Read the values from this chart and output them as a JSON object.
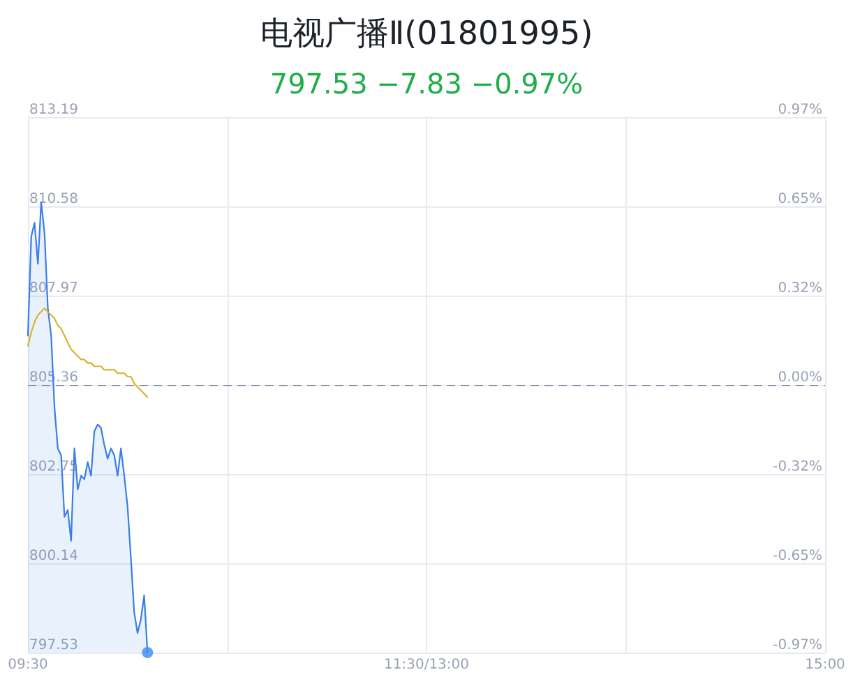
{
  "chart_data": {
    "type": "area",
    "title": "电视广播Ⅱ(01801995)",
    "subtitle": "797.53 −7.83 −0.97%",
    "categories": [
      "09:30",
      null,
      null,
      null,
      null,
      null,
      null,
      null,
      null,
      null,
      null,
      null,
      null,
      null,
      null,
      null,
      null,
      null,
      null,
      null,
      null,
      null,
      null,
      null,
      null,
      null,
      null,
      null,
      null,
      null,
      null,
      null,
      null,
      null,
      null,
      null,
      null,
      null,
      null,
      null,
      null,
      null,
      null,
      null,
      null,
      null,
      null,
      null,
      null,
      null,
      null,
      null,
      null,
      null,
      null,
      null,
      null,
      null,
      null,
      null,
      null,
      null,
      null,
      null,
      null,
      null,
      null,
      null,
      null,
      null,
      null,
      null,
      null,
      null,
      null,
      null,
      null,
      null,
      null,
      null,
      null,
      null,
      null,
      null,
      null,
      null,
      null,
      null,
      null,
      null,
      null,
      null,
      null,
      null,
      null,
      null,
      null,
      null,
      null,
      null,
      null,
      null,
      null,
      null,
      null,
      null,
      null,
      null,
      null,
      null,
      null,
      null,
      null,
      null,
      null,
      null,
      null,
      null,
      null,
      null,
      "11:30/13:00",
      null,
      null,
      null,
      null,
      null,
      null,
      null,
      null,
      null,
      null,
      null,
      null,
      null,
      null,
      null,
      null,
      null,
      null,
      null,
      null,
      null,
      null,
      null,
      null,
      null,
      null,
      null,
      null,
      null,
      null,
      null,
      null,
      null,
      null,
      null,
      null,
      null,
      null,
      null,
      null,
      null,
      null,
      null,
      null,
      null,
      null,
      null,
      null,
      null,
      null,
      null,
      null,
      null,
      null,
      null,
      null,
      null,
      null,
      null,
      null,
      null,
      null,
      null,
      null,
      null,
      null,
      null,
      null,
      null,
      null,
      null,
      null,
      null,
      null,
      null,
      null,
      null,
      null,
      null,
      null,
      null,
      null,
      null,
      null,
      null,
      null,
      null,
      null,
      null,
      null,
      null,
      null,
      null,
      null,
      null,
      null,
      null,
      null,
      null,
      null,
      null,
      null,
      null,
      null,
      null,
      null,
      null,
      null,
      null,
      null,
      null,
      null,
      null,
      null,
      null,
      null,
      null,
      null,
      null,
      "15:00"
    ],
    "ylim": [
      797.53,
      813.19
    ],
    "yticks": [
      797.53,
      800.14,
      802.75,
      805.36,
      807.97,
      810.58,
      813.19
    ],
    "y2lim": [
      -0.97,
      0.97
    ],
    "y2ticks": [
      {
        "value": -0.97,
        "label": "-0.97%"
      },
      {
        "value": -0.6467,
        "label": "-0.65%"
      },
      {
        "value": -0.3233,
        "label": "-0.32%"
      },
      {
        "value": 0,
        "label": "0.00%"
      },
      {
        "value": 0.3233,
        "label": "0.32%"
      },
      {
        "value": 0.6467,
        "label": "0.65%"
      },
      {
        "value": 0.97,
        "label": "0.97%"
      }
    ],
    "grid": true,
    "marker": "none",
    "ref_lines": [
      {
        "axis": "y",
        "value": 805.36,
        "color": "#8c93ab",
        "line_style": "dashed"
      }
    ],
    "series": [
      {
        "color": "#3a7ee9",
        "line_style": "solid",
        "values": [
          806.8,
          809.7,
          810.1,
          808.9,
          810.7,
          809.8,
          807.6,
          806.8,
          804.7,
          803.5,
          803.3,
          801.5,
          801.7,
          800.8,
          803.5,
          802.3,
          802.7,
          802.6,
          803.1,
          802.7,
          804.0,
          804.2,
          804.1,
          803.6,
          803.2,
          803.5,
          803.3,
          802.7,
          803.5,
          802.7,
          801.8,
          800.3,
          798.7,
          798.1,
          798.5,
          799.2,
          797.53,
          null,
          null,
          null,
          null,
          null,
          null,
          null,
          null,
          null,
          null,
          null,
          null,
          null,
          null,
          null,
          null,
          null,
          null,
          null,
          null,
          null,
          null,
          null,
          null,
          null,
          null,
          null,
          null,
          null,
          null,
          null,
          null,
          null,
          null,
          null,
          null,
          null,
          null,
          null,
          null,
          null,
          null,
          null,
          null,
          null,
          null,
          null,
          null,
          null,
          null,
          null,
          null,
          null,
          null,
          null,
          null,
          null,
          null,
          null,
          null,
          null,
          null,
          null,
          null,
          null,
          null,
          null,
          null,
          null,
          null,
          null,
          null,
          null,
          null,
          null,
          null,
          null,
          null,
          null,
          null,
          null,
          null,
          null,
          null,
          null,
          null,
          null,
          null,
          null,
          null,
          null,
          null,
          null,
          null,
          null,
          null,
          null,
          null,
          null,
          null,
          null,
          null,
          null,
          null,
          null,
          null,
          null,
          null,
          null,
          null,
          null,
          null,
          null,
          null,
          null,
          null,
          null,
          null,
          null,
          null,
          null,
          null,
          null,
          null,
          null,
          null,
          null,
          null,
          null,
          null,
          null,
          null,
          null,
          null,
          null,
          null,
          null,
          null,
          null,
          null,
          null,
          null,
          null,
          null,
          null,
          null,
          null,
          null,
          null,
          null,
          null,
          null,
          null,
          null,
          null,
          null,
          null,
          null,
          null,
          null,
          null,
          null,
          null,
          null,
          null,
          null,
          null,
          null,
          null,
          null,
          null,
          null,
          null,
          null,
          null,
          null,
          null,
          null,
          null,
          null,
          null,
          null,
          null,
          null,
          null,
          null,
          null,
          null,
          null,
          null,
          null,
          null,
          null,
          null,
          null,
          null,
          null,
          null,
          null,
          null,
          null,
          null,
          null,
          null
        ]
      },
      {
        "type": "line",
        "color": "#d4b530",
        "line_style": "solid",
        "values": [
          806.5,
          806.9,
          807.2,
          807.4,
          807.5,
          807.6,
          807.5,
          807.4,
          807.3,
          807.1,
          807.0,
          806.8,
          806.6,
          806.4,
          806.3,
          806.2,
          806.1,
          806.1,
          806.0,
          806.0,
          805.9,
          805.9,
          805.9,
          805.8,
          805.8,
          805.8,
          805.8,
          805.7,
          805.7,
          805.7,
          805.6,
          805.6,
          805.4,
          805.3,
          805.2,
          805.1,
          805.0,
          null,
          null,
          null,
          null,
          null,
          null,
          null,
          null,
          null,
          null,
          null,
          null,
          null,
          null,
          null,
          null,
          null,
          null,
          null,
          null,
          null,
          null,
          null,
          null,
          null,
          null,
          null,
          null,
          null,
          null,
          null,
          null,
          null,
          null,
          null,
          null,
          null,
          null,
          null,
          null,
          null,
          null,
          null,
          null,
          null,
          null,
          null,
          null,
          null,
          null,
          null,
          null,
          null,
          null,
          null,
          null,
          null,
          null,
          null,
          null,
          null,
          null,
          null,
          null,
          null,
          null,
          null,
          null,
          null,
          null,
          null,
          null,
          null,
          null,
          null,
          null,
          null,
          null,
          null,
          null,
          null,
          null,
          null,
          null,
          null,
          null,
          null,
          null,
          null,
          null,
          null,
          null,
          null,
          null,
          null,
          null,
          null,
          null,
          null,
          null,
          null,
          null,
          null,
          null,
          null,
          null,
          null,
          null,
          null,
          null,
          null,
          null,
          null,
          null,
          null,
          null,
          null,
          null,
          null,
          null,
          null,
          null,
          null,
          null,
          null,
          null,
          null,
          null,
          null,
          null,
          null,
          null,
          null,
          null,
          null,
          null,
          null,
          null,
          null,
          null,
          null,
          null,
          null,
          null,
          null,
          null,
          null,
          null,
          null,
          null,
          null,
          null,
          null,
          null,
          null,
          null,
          null,
          null,
          null,
          null,
          null,
          null,
          null,
          null,
          null,
          null,
          null,
          null,
          null,
          null,
          null,
          null,
          null,
          null,
          null,
          null,
          null,
          null,
          null,
          null,
          null,
          null,
          null,
          null,
          null,
          null,
          null,
          null,
          null,
          null,
          null,
          null,
          null,
          null,
          null,
          null,
          null,
          null,
          null,
          null,
          null,
          null,
          null,
          null
        ]
      },
      {
        "type": "scatter",
        "color": "#3b8cf6",
        "marker": "circle",
        "values": [
          null,
          null,
          null,
          null,
          null,
          null,
          null,
          null,
          null,
          null,
          null,
          null,
          null,
          null,
          null,
          null,
          null,
          null,
          null,
          null,
          null,
          null,
          null,
          null,
          null,
          null,
          null,
          null,
          null,
          null,
          null,
          null,
          null,
          null,
          null,
          null,
          797.53,
          null,
          null,
          null,
          null,
          null,
          null,
          null,
          null,
          null,
          null,
          null,
          null,
          null,
          null,
          null,
          null,
          null,
          null,
          null,
          null,
          null,
          null,
          null,
          null,
          null,
          null,
          null,
          null,
          null,
          null,
          null,
          null,
          null,
          null,
          null,
          null,
          null,
          null,
          null,
          null,
          null,
          null,
          null,
          null,
          null,
          null,
          null,
          null,
          null,
          null,
          null,
          null,
          null,
          null,
          null,
          null,
          null,
          null,
          null,
          null,
          null,
          null,
          null,
          null,
          null,
          null,
          null,
          null,
          null,
          null,
          null,
          null,
          null,
          null,
          null,
          null,
          null,
          null,
          null,
          null,
          null,
          null,
          null,
          null,
          null,
          null,
          null,
          null,
          null,
          null,
          null,
          null,
          null,
          null,
          null,
          null,
          null,
          null,
          null,
          null,
          null,
          null,
          null,
          null,
          null,
          null,
          null,
          null,
          null,
          null,
          null,
          null,
          null,
          null,
          null,
          null,
          null,
          null,
          null,
          null,
          null,
          null,
          null,
          null,
          null,
          null,
          null,
          null,
          null,
          null,
          null,
          null,
          null,
          null,
          null,
          null,
          null,
          null,
          null,
          null,
          null,
          null,
          null,
          null,
          null,
          null,
          null,
          null,
          null,
          null,
          null,
          null,
          null,
          null,
          null,
          null,
          null,
          null,
          null,
          null,
          null,
          null,
          null,
          null,
          null,
          null,
          null,
          null,
          null,
          null,
          null,
          null,
          null,
          null,
          null,
          null,
          null,
          null,
          null,
          null,
          null,
          null,
          null,
          null,
          null,
          null,
          null,
          null,
          null,
          null,
          null,
          null,
          null,
          null,
          null,
          null,
          null,
          null,
          null,
          null,
          null,
          null,
          null,
          null
        ]
      }
    ]
  }
}
